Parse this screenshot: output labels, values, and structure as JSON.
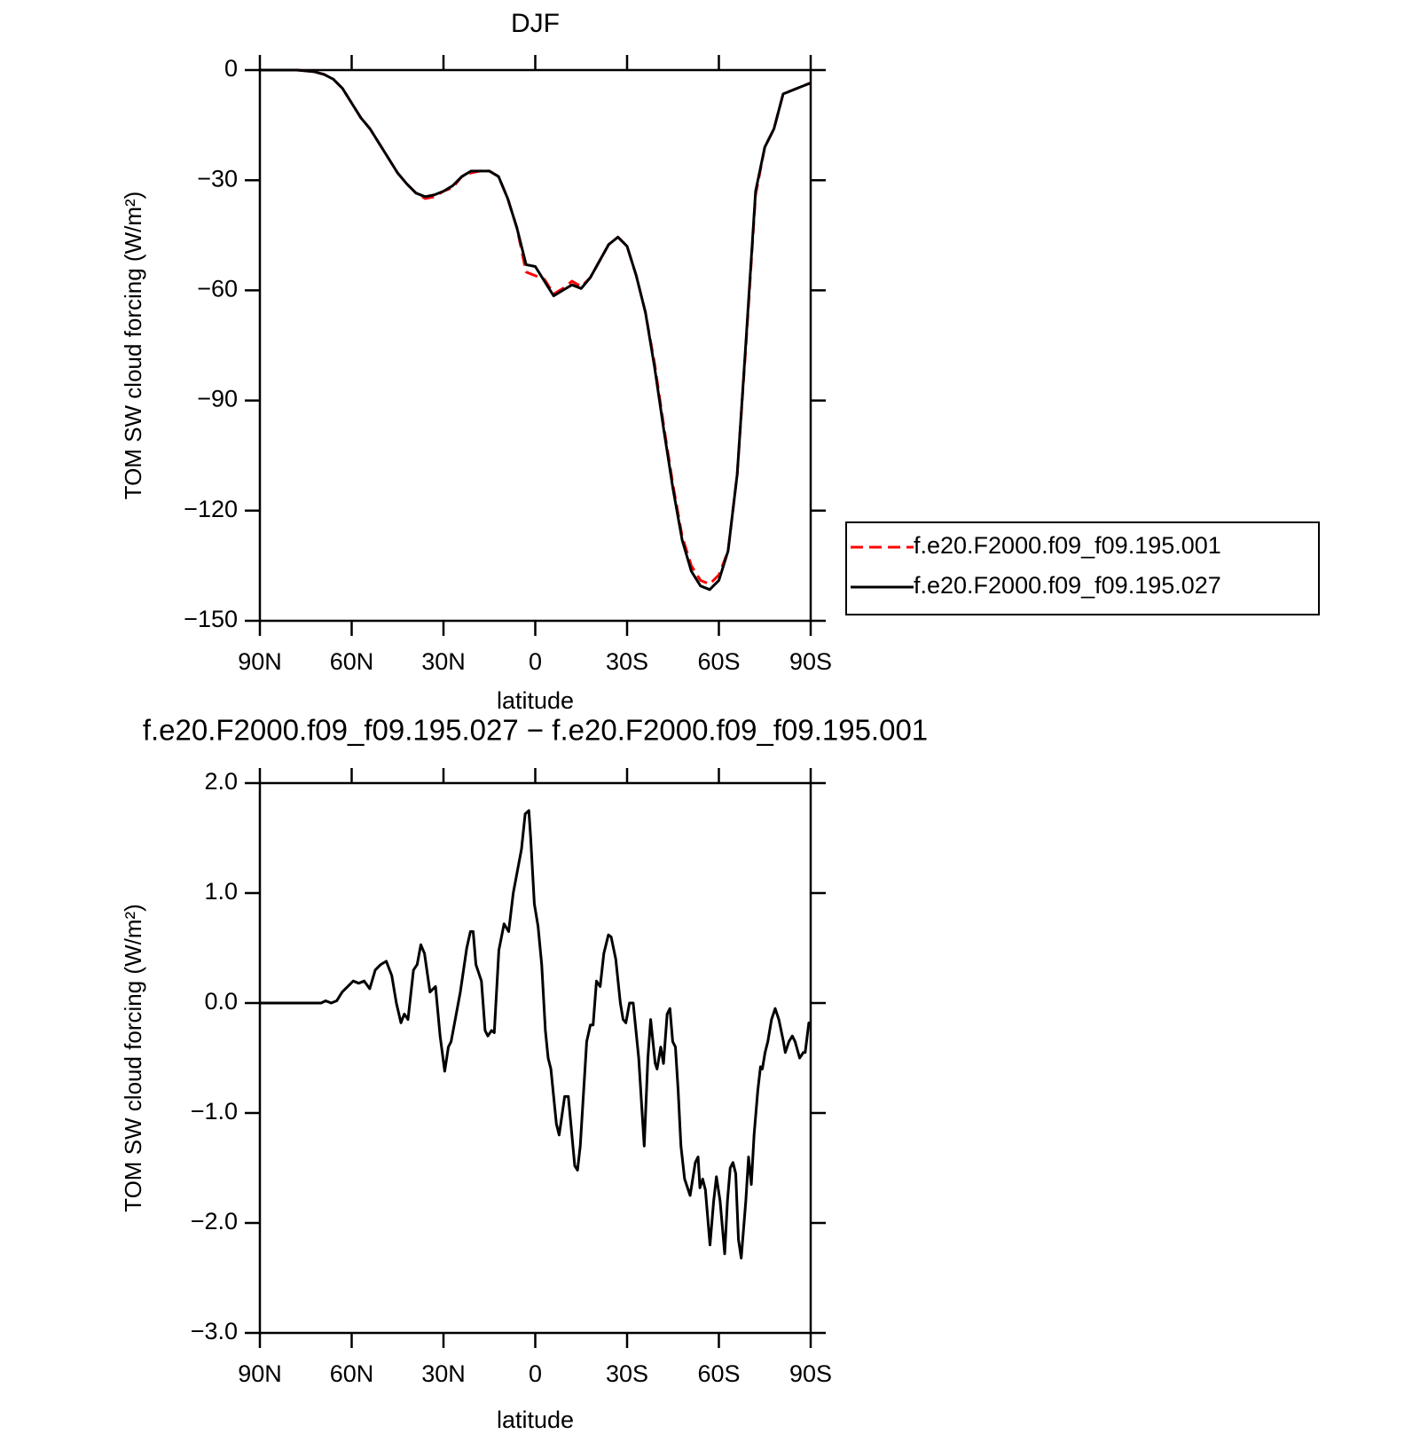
{
  "chart_data": [
    {
      "type": "line",
      "title": "DJF",
      "x_label": "latitude",
      "y_label": "TOM SW cloud forcing (W/m²)",
      "x": [
        90,
        87,
        84,
        81,
        78,
        75,
        72,
        69,
        66,
        63,
        60,
        57,
        54,
        51,
        48,
        45,
        42,
        39,
        36,
        33,
        30,
        27,
        24,
        21,
        18,
        15,
        12,
        9,
        6,
        3,
        0,
        -3,
        -6,
        -9,
        -12,
        -15,
        -18,
        -21,
        -24,
        -27,
        -30,
        -33,
        -36,
        -39,
        -42,
        -45,
        -48,
        -51,
        -54,
        -57,
        -60,
        -63,
        -66,
        -69,
        -72,
        -75,
        -78,
        -81,
        -84,
        -87,
        -90
      ],
      "series": [
        {
          "name": "f.e20.F2000.f09_f09.195.001",
          "color": "#ff0000",
          "linestyle": "dashed",
          "values": [
            0,
            0,
            0,
            0,
            0,
            -0.2,
            -0.5,
            -1.2,
            -2.5,
            -5,
            -9,
            -13,
            -16,
            -20,
            -24,
            -28,
            -31,
            -33.5,
            -35,
            -34.5,
            -33,
            -32,
            -29,
            -28,
            -27.5,
            -27.5,
            -29,
            -35,
            -43,
            -55,
            -56,
            -57,
            -61,
            -59.5,
            -57.5,
            -59,
            -56.5,
            -52,
            -47.5,
            -45.5,
            -48,
            -56,
            -66,
            -80,
            -97,
            -113,
            -127,
            -135,
            -139,
            -140,
            -137.5,
            -131,
            -110,
            -73,
            -34,
            -21,
            -16,
            -6.5,
            -5.5,
            -4.5,
            -3.5
          ]
        },
        {
          "name": "f.e20.F2000.f09_f09.195.027",
          "color": "#000000",
          "linestyle": "solid",
          "values": [
            0,
            0,
            0,
            0,
            0,
            -0.2,
            -0.5,
            -1.2,
            -2.5,
            -5,
            -9,
            -13,
            -16,
            -20,
            -24,
            -28,
            -31,
            -33.5,
            -34.5,
            -34,
            -33,
            -31.5,
            -29,
            -27.5,
            -27.5,
            -27.5,
            -29,
            -35,
            -43,
            -53,
            -53.5,
            -57.5,
            -61.5,
            -60,
            -58.5,
            -59.5,
            -56.5,
            -52,
            -47.5,
            -45.5,
            -48,
            -56,
            -66,
            -81,
            -98,
            -114,
            -128,
            -136.5,
            -140.5,
            -141.5,
            -139,
            -131,
            -110,
            -72,
            -33,
            -21,
            -16,
            -6.5,
            -5.5,
            -4.5,
            -3.5
          ]
        }
      ],
      "xlim": [
        90,
        -90
      ],
      "xticks": [
        {
          "value": 90,
          "label": "90N"
        },
        {
          "value": 60,
          "label": "60N"
        },
        {
          "value": 30,
          "label": "30N"
        },
        0,
        {
          "value": -30,
          "label": "30S"
        },
        {
          "value": -60,
          "label": "60S"
        },
        {
          "value": -90,
          "label": "90S"
        }
      ],
      "ylim": [
        -150,
        0
      ],
      "yticks": [
        0,
        {
          "value": -30,
          "label": "−30"
        },
        {
          "value": -60,
          "label": "−60"
        },
        {
          "value": -90,
          "label": "−90"
        },
        {
          "value": -120,
          "label": "−120"
        },
        {
          "value": -150,
          "label": "−150"
        }
      ],
      "legend": "right"
    },
    {
      "type": "line",
      "title": "f.e20.F2000.f09_f09.195.027 − f.e20.F2000.f09_f09.195.001",
      "x_label": "latitude",
      "y_label": "TOM SW cloud forcing (W/m²)",
      "x": [
        90,
        70,
        68.5,
        66.7,
        64.9,
        63.1,
        61.3,
        59.5,
        57.7,
        55.9,
        54.1,
        52.3,
        50.5,
        48.7,
        46.9,
        45.4,
        43.9,
        42.8,
        41.6,
        39.8,
        38.6,
        37.4,
        36.2,
        34.4,
        32.6,
        31.1,
        29.6,
        28.4,
        27.5,
        24.5,
        22.4,
        21.2,
        20.3,
        19.4,
        17.6,
        16.4,
        15.5,
        14.3,
        13.4,
        11.9,
        10.2,
        8.7,
        7.2,
        4.5,
        3.3,
        2.1,
        1.5,
        0.3,
        -0.9,
        -2.1,
        -3.3,
        -4.2,
        -5.1,
        -6.9,
        -7.8,
        -9.6,
        -10.8,
        -12.9,
        -13.8,
        -14.7,
        -16.8,
        -18,
        -18.9,
        -20,
        -21.2,
        -22.4,
        -23.9,
        -24.8,
        -26.3,
        -27.8,
        -28.7,
        -29.6,
        -30.8,
        -32,
        -33.8,
        -35.6,
        -36.8,
        -37.7,
        -39.2,
        -39.8,
        -41,
        -41.9,
        -43.1,
        -44,
        -44.9,
        -45.8,
        -46.7,
        -47.6,
        -48.8,
        -50.6,
        -52.3,
        -53.2,
        -53.8,
        -54.7,
        -55.6,
        -57.1,
        -58.3,
        -59.2,
        -60.4,
        -61.9,
        -62.8,
        -63.7,
        -64.6,
        -65.5,
        -66.4,
        -67.3,
        -68.8,
        -69.7,
        -70.6,
        -71.5,
        -72.7,
        -73.6,
        -74.2,
        -75.1,
        -76,
        -77.2,
        -78.4,
        -79.6,
        -81.1,
        -81.7,
        -82.9,
        -84,
        -84.9,
        -86.4,
        -87.6,
        -88.2,
        -89.4,
        -90
      ],
      "values": [
        0,
        0,
        0.02,
        0,
        0.02,
        0.1,
        0.15,
        0.2,
        0.18,
        0.2,
        0.13,
        0.3,
        0.35,
        0.38,
        0.25,
        0,
        -0.18,
        -0.1,
        -0.15,
        0.3,
        0.35,
        0.53,
        0.45,
        0.1,
        0.15,
        -0.3,
        -0.62,
        -0.4,
        -0.35,
        0.1,
        0.5,
        0.65,
        0.65,
        0.35,
        0.2,
        -0.25,
        -0.3,
        -0.25,
        -0.27,
        0.48,
        0.72,
        0.65,
        1.0,
        1.4,
        1.72,
        1.75,
        1.5,
        0.9,
        0.7,
        0.35,
        -0.25,
        -0.5,
        -0.6,
        -1.1,
        -1.2,
        -0.85,
        -0.85,
        -1.48,
        -1.52,
        -1.3,
        -0.35,
        -0.2,
        -0.2,
        0.2,
        0.15,
        0.45,
        0.62,
        0.6,
        0.4,
        0,
        -0.15,
        -0.18,
        0,
        0,
        -0.5,
        -1.3,
        -0.5,
        -0.15,
        -0.55,
        -0.6,
        -0.4,
        -0.55,
        -0.1,
        -0.05,
        -0.35,
        -0.4,
        -0.8,
        -1.3,
        -1.6,
        -1.75,
        -1.45,
        -1.4,
        -1.68,
        -1.6,
        -1.7,
        -2.2,
        -1.8,
        -1.58,
        -1.8,
        -2.28,
        -1.8,
        -1.5,
        -1.45,
        -1.55,
        -2.15,
        -2.32,
        -1.8,
        -1.4,
        -1.65,
        -1.2,
        -0.8,
        -0.58,
        -0.6,
        -0.45,
        -0.35,
        -0.15,
        -0.05,
        -0.15,
        -0.35,
        -0.45,
        -0.35,
        -0.3,
        -0.35,
        -0.5,
        -0.45,
        -0.45,
        -0.18,
        -0.2
      ],
      "color": "#000000",
      "xlim": [
        90,
        -90
      ],
      "xticks": [
        {
          "value": 90,
          "label": "90N"
        },
        {
          "value": 60,
          "label": "60N"
        },
        {
          "value": 30,
          "label": "30N"
        },
        0,
        {
          "value": -30,
          "label": "30S"
        },
        {
          "value": -60,
          "label": "60S"
        },
        {
          "value": -90,
          "label": "90S"
        }
      ],
      "ylim": [
        -3,
        2
      ],
      "yticks": [
        {
          "value": 2,
          "label": "2.0"
        },
        {
          "value": 1,
          "label": "1.0"
        },
        {
          "value": 0,
          "label": "0.0"
        },
        {
          "value": -1,
          "label": "−1.0"
        },
        {
          "value": -2,
          "label": "−2.0"
        },
        {
          "value": -3,
          "label": "−3.0"
        }
      ]
    }
  ]
}
